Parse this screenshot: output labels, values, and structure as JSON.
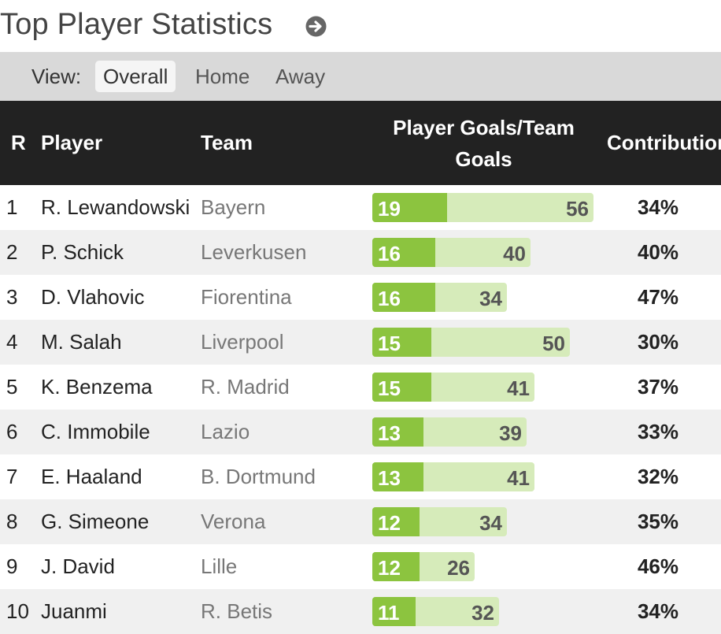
{
  "title": "Top Player Statistics",
  "title_icon": "arrow-circle-right-icon",
  "view": {
    "label": "View:",
    "options": [
      "Overall",
      "Home",
      "Away"
    ],
    "selected": "Overall"
  },
  "table": {
    "headers": {
      "rank": "R",
      "player": "Player",
      "team": "Team",
      "goals": "Player Goals/Team Goals",
      "contribution": "Contribution"
    },
    "max_team_goals": 56,
    "rows": [
      {
        "rank": "1",
        "player": "R. Lewandowski",
        "team": "Bayern",
        "player_goals": 19,
        "team_goals": 56,
        "contribution": "34%"
      },
      {
        "rank": "2",
        "player": "P. Schick",
        "team": "Leverkusen",
        "player_goals": 16,
        "team_goals": 40,
        "contribution": "40%"
      },
      {
        "rank": "3",
        "player": "D. Vlahovic",
        "team": "Fiorentina",
        "player_goals": 16,
        "team_goals": 34,
        "contribution": "47%"
      },
      {
        "rank": "4",
        "player": "M. Salah",
        "team": "Liverpool",
        "player_goals": 15,
        "team_goals": 50,
        "contribution": "30%"
      },
      {
        "rank": "5",
        "player": "K. Benzema",
        "team": "R. Madrid",
        "player_goals": 15,
        "team_goals": 41,
        "contribution": "37%"
      },
      {
        "rank": "6",
        "player": "C. Immobile",
        "team": "Lazio",
        "player_goals": 13,
        "team_goals": 39,
        "contribution": "33%"
      },
      {
        "rank": "7",
        "player": "E. Haaland",
        "team": "B. Dortmund",
        "player_goals": 13,
        "team_goals": 41,
        "contribution": "32%"
      },
      {
        "rank": "8",
        "player": "G. Simeone",
        "team": "Verona",
        "player_goals": 12,
        "team_goals": 34,
        "contribution": "35%"
      },
      {
        "rank": "9",
        "player": "J. David",
        "team": "Lille",
        "player_goals": 12,
        "team_goals": 26,
        "contribution": "46%"
      },
      {
        "rank": "10",
        "player": "Juanmi",
        "team": "R. Betis",
        "player_goals": 11,
        "team_goals": 32,
        "contribution": "34%"
      }
    ]
  },
  "colors": {
    "header_bg": "#222222",
    "bar_player": "#8cc43f",
    "bar_team": "#d6ebba",
    "viewbar_bg": "#d9d9d9"
  }
}
